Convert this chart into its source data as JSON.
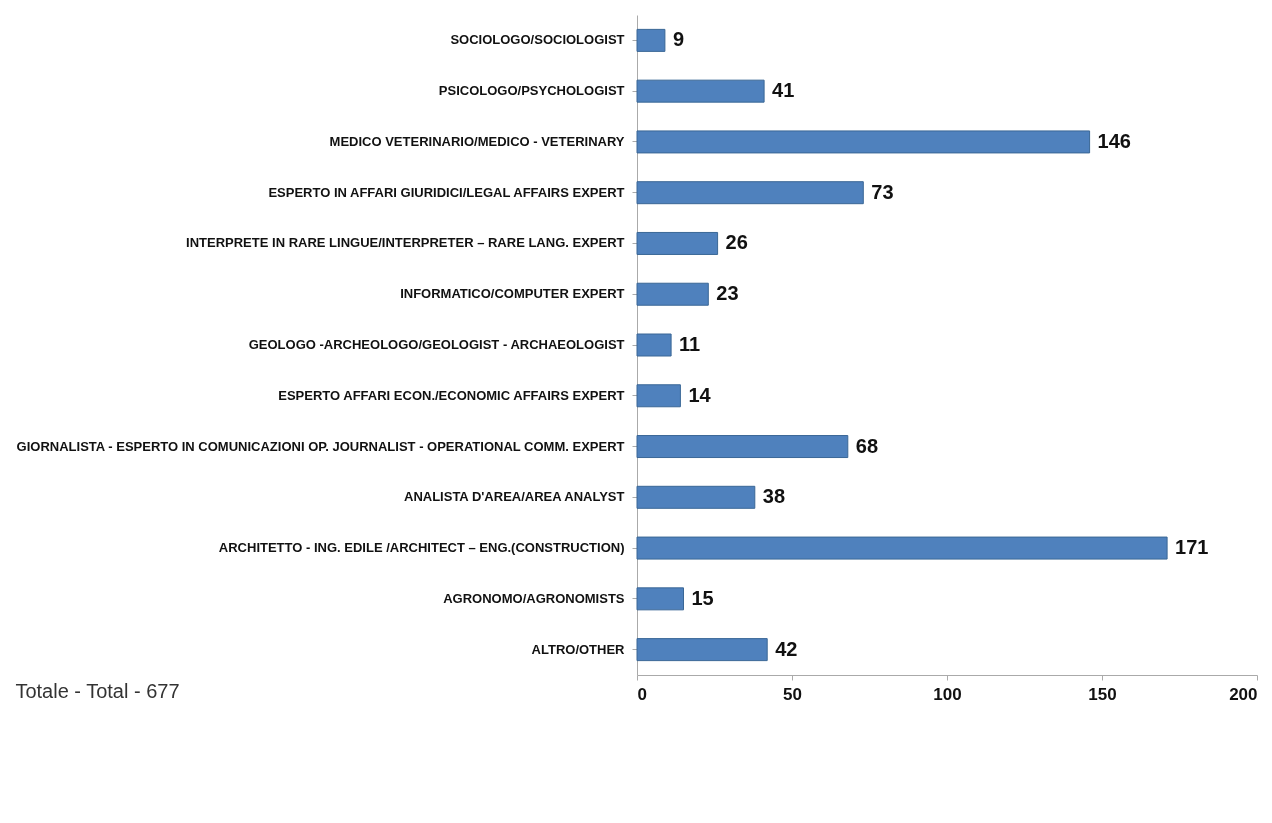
{
  "chart_data": {
    "type": "bar",
    "orientation": "horizontal",
    "categories": [
      "SOCIOLOGO/SOCIOLOGIST",
      "PSICOLOGO/PSYCHOLOGIST",
      "MEDICO VETERINARIO/MEDICO - VETERINARY",
      "ESPERTO IN AFFARI GIURIDICI/LEGAL AFFAIRS EXPERT",
      "INTERPRETE IN RARE LINGUE/INTERPRETER – RARE LANG. EXPERT",
      "INFORMATICO/COMPUTER EXPERT",
      "GEOLOGO -ARCHEOLOGO/GEOLOGIST - ARCHAEOLOGIST",
      "ESPERTO AFFARI ECON./ECONOMIC AFFAIRS EXPERT",
      "GIORNALISTA - ESPERTO IN COMUNICAZIONI OP. JOURNALIST - OPERATIONAL COMM. EXPERT",
      "ANALISTA D'AREA/AREA ANALYST",
      "ARCHITETTO - ING. EDILE /ARCHITECT – ENG.(CONSTRUCTION)",
      "AGRONOMO/AGRONOMISTS",
      "ALTRO/OTHER"
    ],
    "values": [
      9,
      41,
      146,
      73,
      26,
      23,
      11,
      14,
      68,
      38,
      171,
      15,
      42
    ],
    "color": "#4f81bd",
    "data_labels": true,
    "xlim": [
      0,
      200
    ],
    "xticks": [
      0,
      50,
      100,
      150,
      200
    ],
    "grid": false,
    "annotations": [
      "Totale - Total - 677"
    ]
  }
}
